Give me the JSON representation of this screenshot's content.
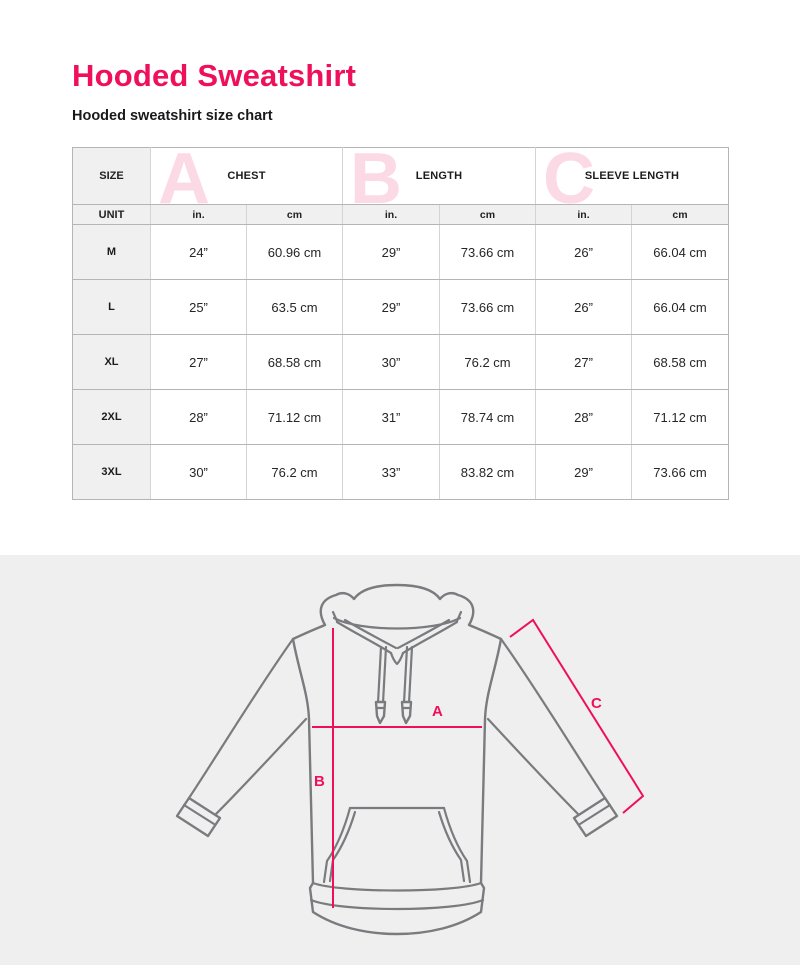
{
  "page": {
    "title": "Hooded Sweatshirt",
    "subtitle": "Hooded sweatshirt size chart"
  },
  "colors": {
    "accent": "#EE105A",
    "accent_light": "#FBD9E5",
    "diagram_background": "#F0EFEF",
    "garment_outline": "#7A7B7E",
    "header_cell_background": "#F1F0F0"
  },
  "table": {
    "size_header": "SIZE",
    "unit_header": "UNIT",
    "groups": [
      {
        "letter": "A",
        "label": "CHEST"
      },
      {
        "letter": "B",
        "label": "LENGTH"
      },
      {
        "letter": "C",
        "label": "SLEEVE LENGTH"
      }
    ],
    "unit_labels": [
      "in.",
      "cm",
      "in.",
      "cm",
      "in.",
      "cm"
    ],
    "rows": [
      {
        "size": "M",
        "values": [
          "24”",
          "60.96 cm",
          "29”",
          "73.66 cm",
          "26”",
          "66.04 cm"
        ]
      },
      {
        "size": "L",
        "values": [
          "25”",
          "63.5 cm",
          "29”",
          "73.66 cm",
          "26”",
          "66.04 cm"
        ]
      },
      {
        "size": "XL",
        "values": [
          "27”",
          "68.58 cm",
          "30”",
          "76.2 cm",
          "27”",
          "68.58 cm"
        ]
      },
      {
        "size": "2XL",
        "values": [
          "28”",
          "71.12 cm",
          "31”",
          "78.74 cm",
          "28”",
          "71.12 cm"
        ]
      },
      {
        "size": "3XL",
        "values": [
          "30”",
          "76.2 cm",
          "33”",
          "83.82 cm",
          "29”",
          "73.66 cm"
        ]
      }
    ]
  },
  "diagram": {
    "measure_a_label": "A",
    "measure_b_label": "B",
    "measure_c_label": "C"
  }
}
